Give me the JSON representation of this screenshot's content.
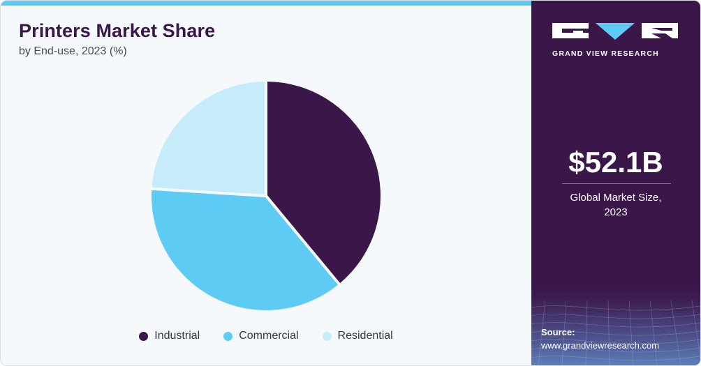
{
  "chart_data": {
    "type": "pie",
    "title": "Printers Market Share",
    "subtitle": "by End-use, 2023 (%)",
    "categories": [
      "Industrial",
      "Commercial",
      "Residential"
    ],
    "values": [
      39,
      37,
      24
    ],
    "colors": [
      "#3a1649",
      "#5ecbf5",
      "#c6ecfb"
    ],
    "legend_position": "bottom"
  },
  "brand": {
    "name": "GRAND VIEW RESEARCH"
  },
  "stat": {
    "value": "$52.1B",
    "label_line1": "Global Market Size,",
    "label_line2": "2023"
  },
  "source": {
    "title": "Source:",
    "url": "www.grandviewresearch.com"
  }
}
